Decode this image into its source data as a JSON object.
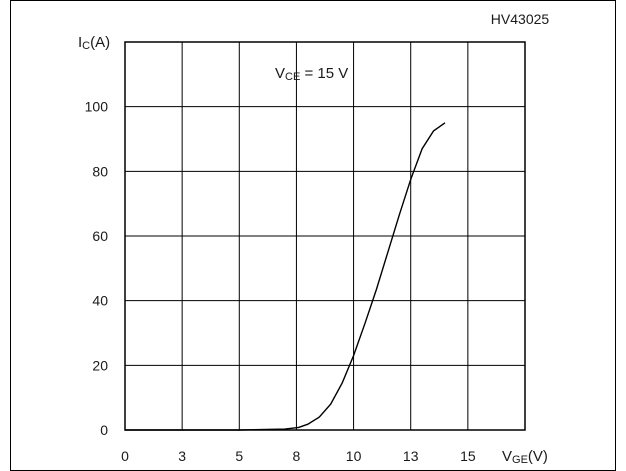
{
  "chart_data": {
    "type": "line",
    "figure_id": "HV43025",
    "annotation": {
      "main": "V",
      "sub": "CE",
      "rest": " = 15 V"
    },
    "y_axis": {
      "label_main": "I",
      "label_sub": "C",
      "label_rest": "(A)",
      "ylim": [
        0,
        120
      ],
      "tick_values": [
        0,
        20,
        40,
        60,
        80,
        100
      ],
      "tick_labels": [
        "0",
        "20",
        "40",
        "60",
        "80",
        "100"
      ]
    },
    "x_axis": {
      "label_main": "V",
      "label_sub": "GE",
      "label_rest": "(V)",
      "tick_labels": [
        "0",
        "3",
        "5",
        "8",
        "10",
        "13",
        "15"
      ]
    },
    "grid": true,
    "series": [
      {
        "points": [
          [
            0,
            0.0
          ],
          [
            3,
            0.0
          ],
          [
            5,
            0.0
          ],
          [
            7,
            0.3
          ],
          [
            7.6,
            0.8
          ],
          [
            8,
            1.8
          ],
          [
            8.5,
            4.0
          ],
          [
            9,
            8.0
          ],
          [
            9.5,
            14.5
          ],
          [
            10,
            23.0
          ],
          [
            10.5,
            33.0
          ],
          [
            11,
            43.5
          ],
          [
            11.5,
            55.0
          ],
          [
            12,
            66.5
          ],
          [
            12.5,
            77.5
          ],
          [
            13,
            87.0
          ],
          [
            13.5,
            92.5
          ],
          [
            14,
            95.0
          ]
        ]
      }
    ]
  }
}
